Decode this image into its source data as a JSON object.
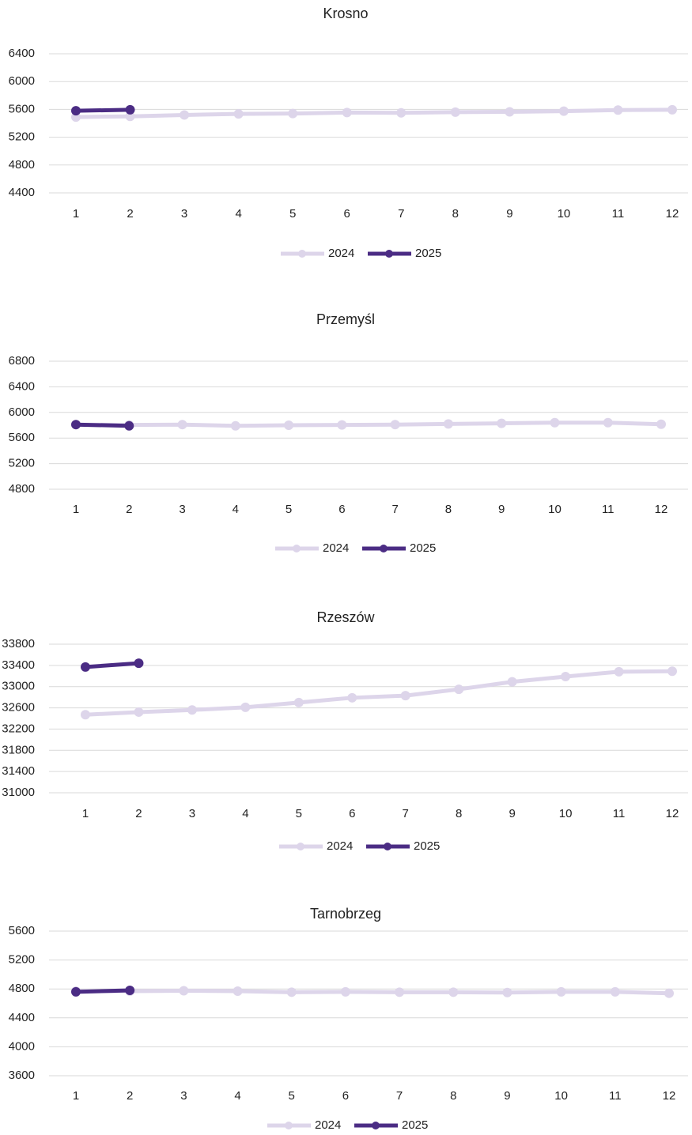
{
  "chart_data": [
    {
      "type": "line",
      "title": "Krosno",
      "categories": [
        "1",
        "2",
        "3",
        "4",
        "5",
        "6",
        "7",
        "8",
        "9",
        "10",
        "11",
        "12"
      ],
      "series": [
        {
          "name": "2024",
          "color": "#ddd5ea",
          "values": [
            5490,
            5500,
            5520,
            5535,
            5540,
            5555,
            5550,
            5560,
            5565,
            5575,
            5590,
            5595
          ]
        },
        {
          "name": "2025",
          "color": "#4b2c84",
          "values": [
            5580,
            5595,
            null,
            null,
            null,
            null,
            null,
            null,
            null,
            null,
            null,
            null
          ]
        }
      ],
      "ylim": [
        4400,
        6400
      ],
      "yticks": [
        4400,
        4800,
        5200,
        5600,
        6000,
        6400
      ],
      "grid": true,
      "legend": "bottom"
    },
    {
      "type": "line",
      "title": "Przemyśl",
      "categories": [
        "1",
        "2",
        "3",
        "4",
        "5",
        "6",
        "7",
        "8",
        "9",
        "10",
        "11",
        "12"
      ],
      "series": [
        {
          "name": "2024",
          "color": "#ddd5ea",
          "values": [
            5810,
            5805,
            5810,
            5790,
            5800,
            5805,
            5810,
            5820,
            5830,
            5840,
            5840,
            5815
          ]
        },
        {
          "name": "2025",
          "color": "#4b2c84",
          "values": [
            5810,
            5790,
            null,
            null,
            null,
            null,
            null,
            null,
            null,
            null,
            null,
            null
          ]
        }
      ],
      "ylim": [
        4800,
        6800
      ],
      "yticks": [
        4800,
        5200,
        5600,
        6000,
        6400,
        6800
      ],
      "grid": true,
      "legend": "bottom"
    },
    {
      "type": "line",
      "title": "Rzeszów",
      "categories": [
        "1",
        "2",
        "3",
        "4",
        "5",
        "6",
        "7",
        "8",
        "9",
        "10",
        "11",
        "12"
      ],
      "series": [
        {
          "name": "2024",
          "color": "#ddd5ea",
          "values": [
            32470,
            32520,
            32560,
            32610,
            32700,
            32790,
            32830,
            32950,
            33090,
            33190,
            33280,
            33290
          ]
        },
        {
          "name": "2025",
          "color": "#4b2c84",
          "values": [
            33370,
            33440,
            null,
            null,
            null,
            null,
            null,
            null,
            null,
            null,
            null,
            null
          ]
        }
      ],
      "ylim": [
        31000,
        33800
      ],
      "yticks": [
        31000,
        31400,
        31800,
        32200,
        32600,
        33000,
        33400,
        33800
      ],
      "grid": true,
      "legend": "bottom"
    },
    {
      "type": "line",
      "title": "Tarnobrzeg",
      "categories": [
        "1",
        "2",
        "3",
        "4",
        "5",
        "6",
        "7",
        "8",
        "9",
        "10",
        "11",
        "12"
      ],
      "series": [
        {
          "name": "2024",
          "color": "#ddd5ea",
          "values": [
            4770,
            4770,
            4775,
            4770,
            4755,
            4760,
            4755,
            4755,
            4750,
            4760,
            4760,
            4740
          ]
        },
        {
          "name": "2025",
          "color": "#4b2c84",
          "values": [
            4760,
            4780,
            null,
            null,
            null,
            null,
            null,
            null,
            null,
            null,
            null,
            null
          ]
        }
      ],
      "ylim": [
        3600,
        5600
      ],
      "yticks": [
        3600,
        4000,
        4400,
        4800,
        5200,
        5600
      ],
      "grid": true,
      "legend": "bottom"
    }
  ]
}
